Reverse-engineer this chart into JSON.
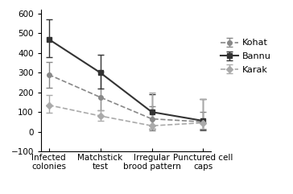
{
  "categories": [
    "Infected\ncolonies",
    "Matchstick\ntest",
    "Irregular\nbrood pattern",
    "Punctured cell\ncaps"
  ],
  "series": {
    "Kohat": {
      "values": [
        290,
        175,
        65,
        50
      ],
      "yerr_lo": [
        65,
        65,
        60,
        45
      ],
      "yerr_hi": [
        65,
        130,
        65,
        50
      ],
      "color": "#888888",
      "linestyle": "--",
      "marker": "o",
      "markersize": 4,
      "linewidth": 1.2
    },
    "Bannu": {
      "values": [
        470,
        300,
        100,
        55
      ],
      "yerr_lo": [
        90,
        80,
        85,
        45
      ],
      "yerr_hi": [
        100,
        90,
        90,
        110
      ],
      "color": "#333333",
      "linestyle": "-",
      "marker": "s",
      "markersize": 5,
      "linewidth": 1.5
    },
    "Karak": {
      "values": [
        135,
        80,
        30,
        45
      ],
      "yerr_lo": [
        40,
        25,
        15,
        30
      ],
      "yerr_hi": [
        50,
        30,
        170,
        120
      ],
      "color": "#aaaaaa",
      "linestyle": "--",
      "marker": "D",
      "markersize": 4,
      "linewidth": 1.2
    }
  },
  "ylim": [
    -100,
    620
  ],
  "yticks": [
    -100,
    0,
    100,
    200,
    300,
    400,
    500,
    600
  ],
  "legend_order": [
    "Kohat",
    "Bannu",
    "Karak"
  ],
  "background_color": "#ffffff",
  "tick_fontsize": 7.5,
  "legend_fontsize": 8
}
